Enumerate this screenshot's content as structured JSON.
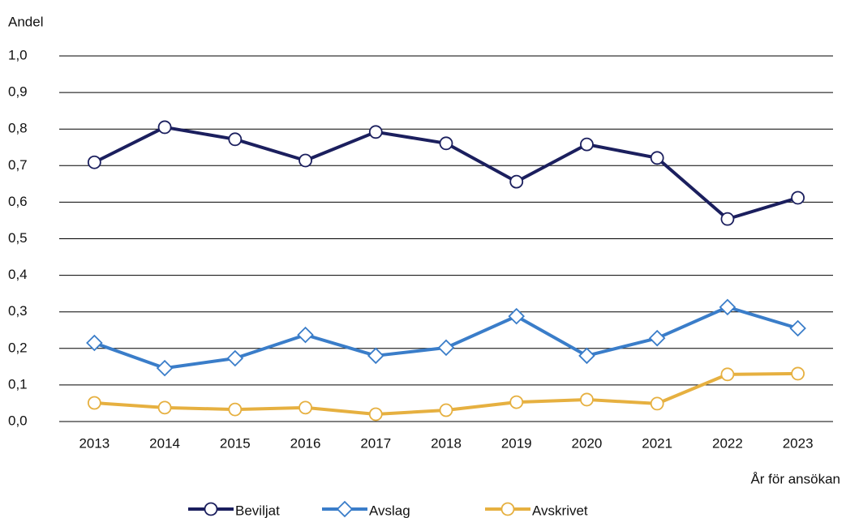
{
  "chart_data": {
    "type": "line",
    "y_label": "Andel",
    "x_label": "År för ansökan",
    "categories": [
      "2013",
      "2014",
      "2015",
      "2016",
      "2017",
      "2018",
      "2019",
      "2020",
      "2021",
      "2022",
      "2023"
    ],
    "series": [
      {
        "name": "Beviljat",
        "color": "#1b1f5e",
        "marker": "circle",
        "values": [
          0.709,
          0.805,
          0.772,
          0.714,
          0.792,
          0.761,
          0.656,
          0.758,
          0.721,
          0.554,
          0.612
        ]
      },
      {
        "name": "Avslag",
        "color": "#3a7dc9",
        "marker": "diamond",
        "values": [
          0.215,
          0.146,
          0.173,
          0.237,
          0.18,
          0.202,
          0.288,
          0.18,
          0.228,
          0.313,
          0.255
        ]
      },
      {
        "name": "Avskrivet",
        "color": "#e6b040",
        "marker": "circle",
        "values": [
          0.051,
          0.038,
          0.033,
          0.038,
          0.02,
          0.031,
          0.053,
          0.06,
          0.049,
          0.129,
          0.131
        ]
      }
    ],
    "ylim": [
      0,
      1
    ],
    "yticks": [
      {
        "value": 0,
        "label": "0,0"
      },
      {
        "value": 0.1,
        "label": "0,1"
      },
      {
        "value": 0.2,
        "label": "0,2"
      },
      {
        "value": 0.3,
        "label": "0,3"
      },
      {
        "value": 0.4,
        "label": "0,4"
      },
      {
        "value": 0.5,
        "label": "0,5"
      },
      {
        "value": 0.6,
        "label": "0,6"
      },
      {
        "value": 0.7,
        "label": "0,7"
      },
      {
        "value": 0.8,
        "label": "0,8"
      },
      {
        "value": 0.9,
        "label": "0,9"
      },
      {
        "value": 1,
        "label": "1,0"
      }
    ],
    "grid": true,
    "legend": "bottom"
  }
}
